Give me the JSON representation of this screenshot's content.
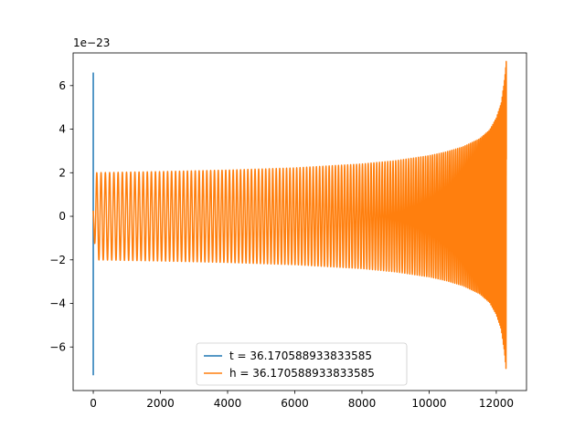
{
  "chart_data": {
    "type": "line",
    "title": "",
    "xlabel": "",
    "ylabel": "",
    "xlim": [
      -600,
      12900
    ],
    "ylim": [
      -8.0,
      7.5
    ],
    "y_scale_label": "1e−23",
    "x_ticks": [
      0,
      2000,
      4000,
      6000,
      8000,
      10000,
      12000
    ],
    "x_tick_labels": [
      "0",
      "2000",
      "4000",
      "6000",
      "8000",
      "10000",
      "12000"
    ],
    "y_ticks": [
      -6,
      -4,
      -2,
      0,
      2,
      4,
      6
    ],
    "y_tick_labels": [
      "−6",
      "−4",
      "−2",
      "0",
      "2",
      "4",
      "6"
    ],
    "grid": false,
    "legend_position": "bottom-center",
    "series": [
      {
        "name": "t = 36.170588933833585",
        "color": "#1f77b4",
        "description": "vertical spike at x≈0",
        "points": [
          [
            0,
            -7.3
          ],
          [
            0,
            6.6
          ]
        ]
      },
      {
        "name": "h = 36.170588933833585",
        "color": "#ff7f0e",
        "description": "chirp waveform",
        "envelope": {
          "x": [
            0,
            100,
            2000,
            4000,
            6000,
            8000,
            9000,
            10000,
            10500,
            11000,
            11500,
            11800,
            12000,
            12150,
            12250,
            12300
          ],
          "amp": [
            0.7,
            2.0,
            2.05,
            2.12,
            2.22,
            2.4,
            2.55,
            2.78,
            2.95,
            3.18,
            3.55,
            3.95,
            4.5,
            5.2,
            6.3,
            7.2
          ]
        },
        "cycles": 150,
        "x_end": 12300
      }
    ]
  }
}
